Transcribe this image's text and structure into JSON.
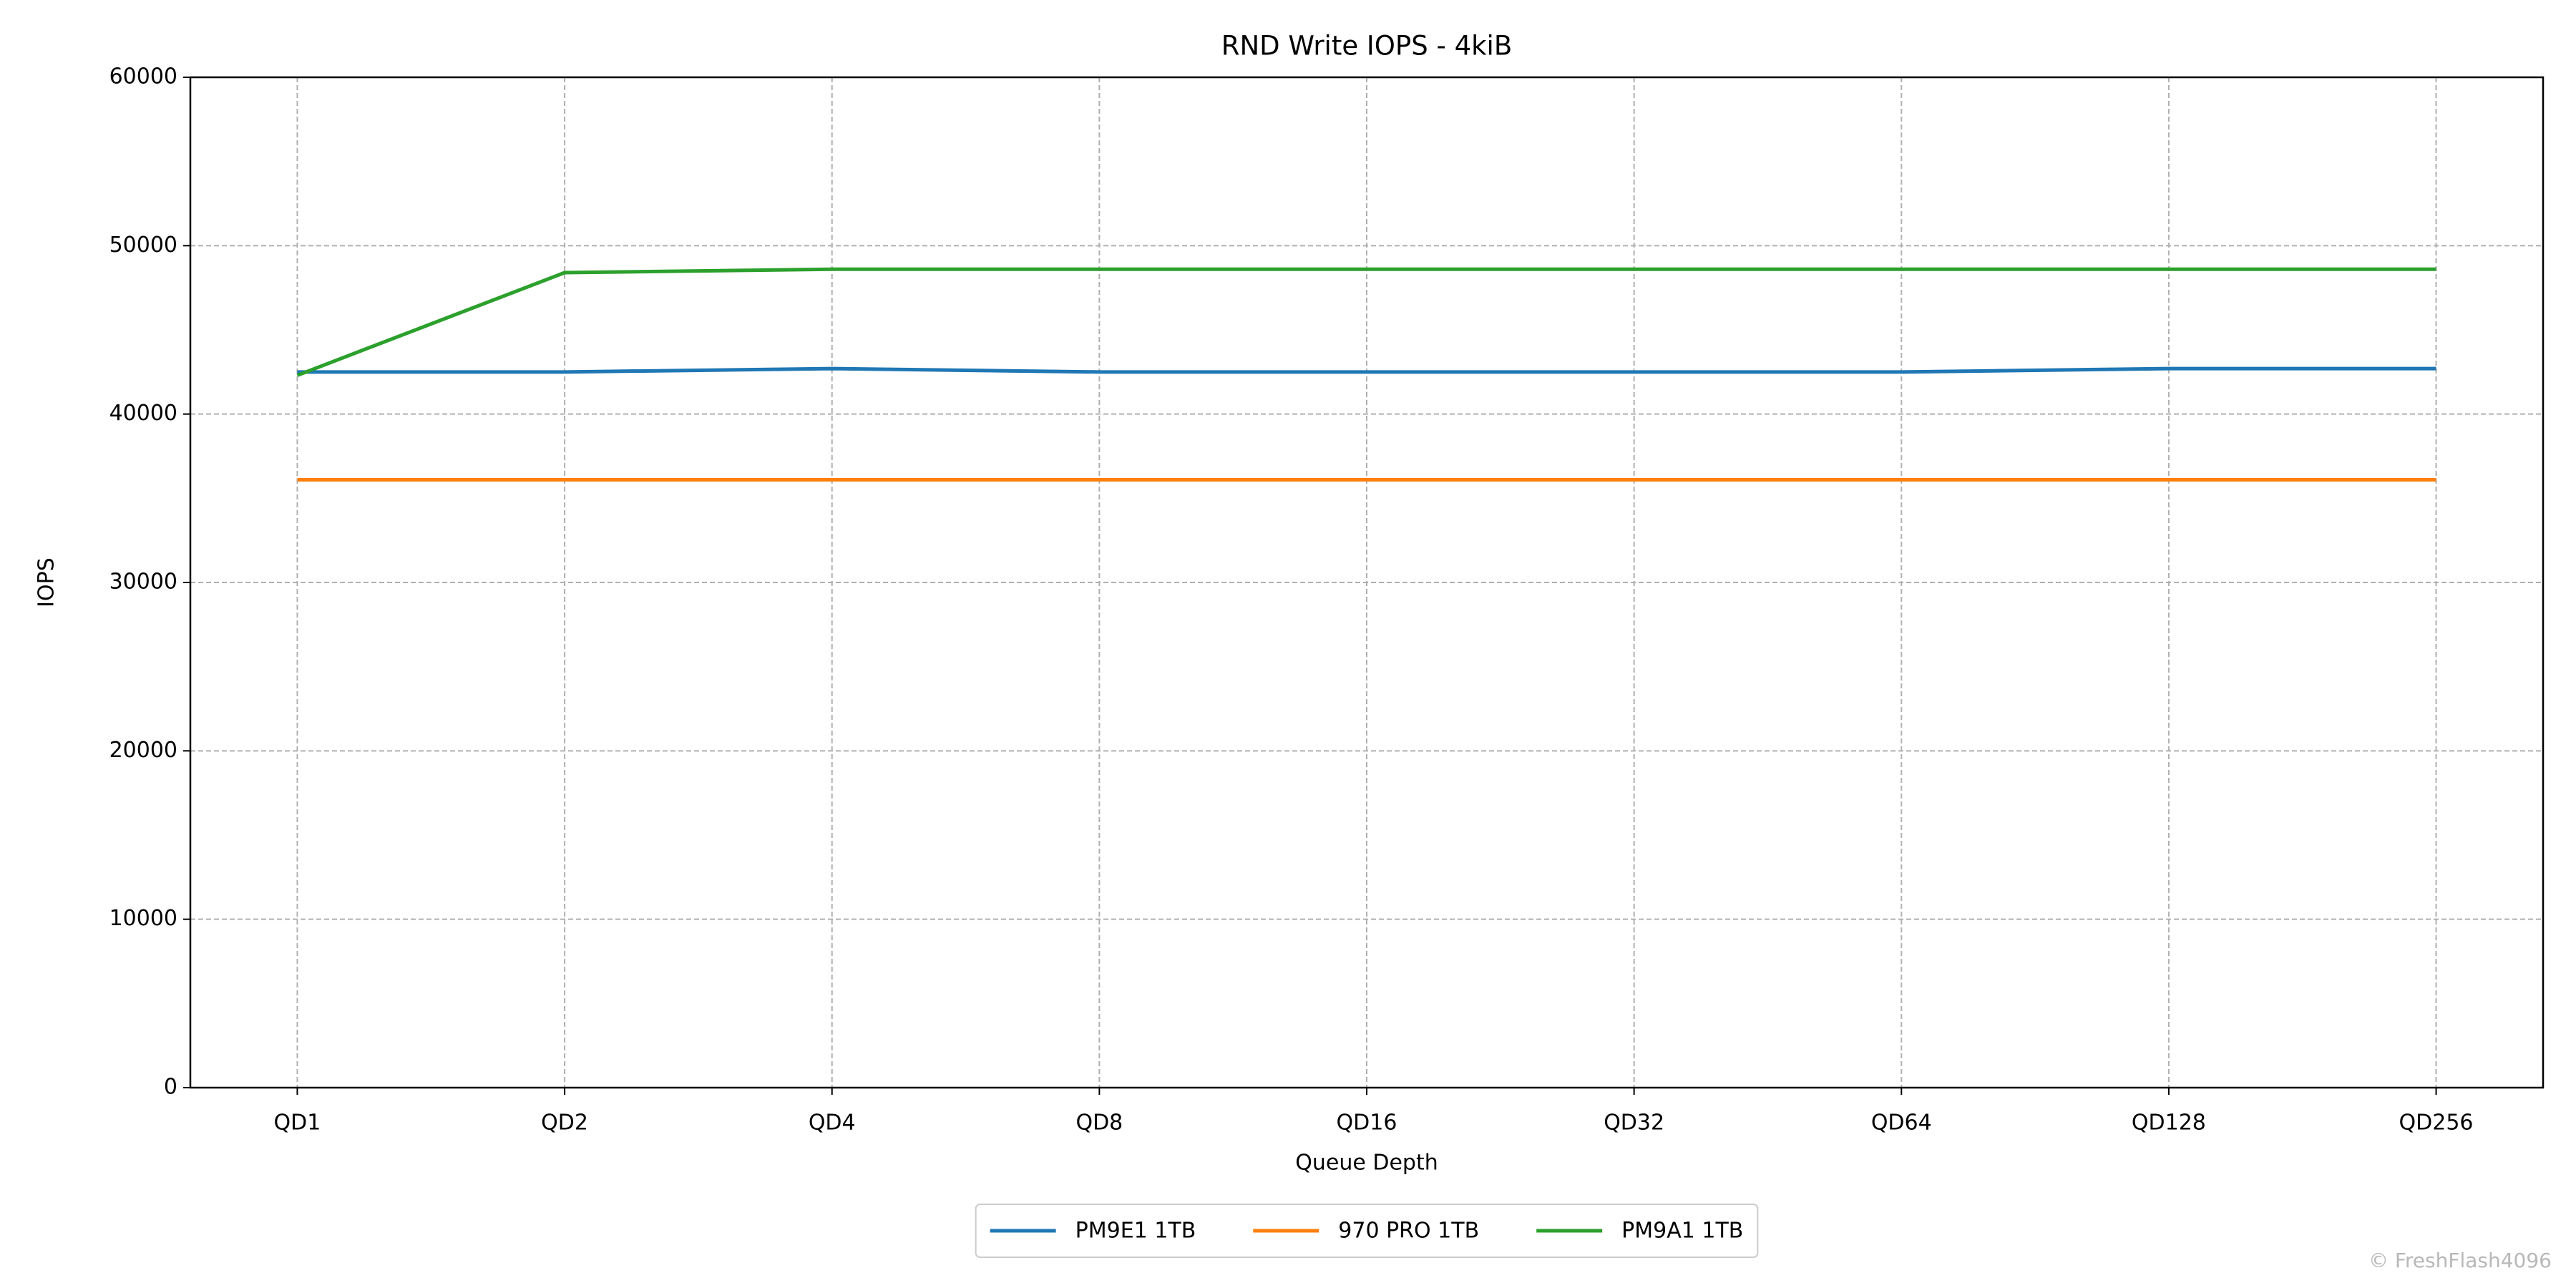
{
  "chart_data": {
    "type": "line",
    "title": "RND Write IOPS - 4kiB",
    "x_label": "Queue Depth",
    "y_label": "IOPS",
    "categories": [
      "QD1",
      "QD2",
      "QD4",
      "QD8",
      "QD16",
      "QD32",
      "QD64",
      "QD128",
      "QD256"
    ],
    "series": [
      {
        "name": "PM9E1 1TB",
        "color": "#1f77b4",
        "values": [
          42500,
          42500,
          42700,
          42500,
          42500,
          42500,
          42500,
          42700,
          42700
        ]
      },
      {
        "name": "970 PRO 1TB",
        "color": "#ff7f0e",
        "values": [
          36100,
          36100,
          36100,
          36100,
          36100,
          36100,
          36100,
          36100,
          36100
        ]
      },
      {
        "name": "PM9A1 1TB",
        "color": "#2ca02c",
        "values": [
          42300,
          48400,
          48600,
          48600,
          48600,
          48600,
          48600,
          48600,
          48600
        ]
      }
    ],
    "ylim": [
      0,
      60000
    ],
    "yticks": [
      0,
      10000,
      20000,
      30000,
      40000,
      50000,
      60000
    ],
    "grid": true,
    "legend": "bottom",
    "watermark": "© FreshFlash4096"
  }
}
